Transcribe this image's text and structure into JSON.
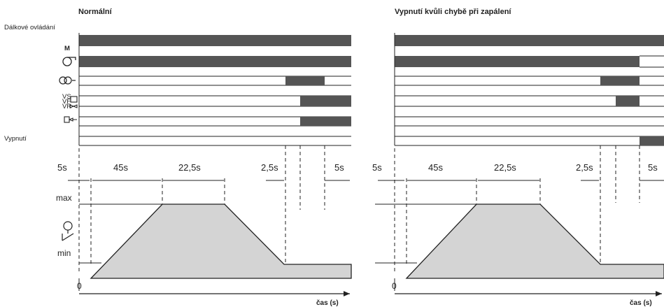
{
  "panels": [
    {
      "id": "left",
      "title": "Normální",
      "remote_label": "Dálkové ovládání",
      "motor_label": "M",
      "shutdown_label": "Vypnutí",
      "durations": [
        "5s",
        "45s",
        "22,5s",
        "2,5s",
        "5s"
      ],
      "y_max_label": "max",
      "y_min_label": "min",
      "origin_label": "0",
      "x_axis_label": "čas (s)"
    },
    {
      "id": "right",
      "title": "Vypnutí kvůli chybě při zapálení",
      "durations": [
        "5s",
        "45s",
        "22,5s",
        "2,5s",
        "5s"
      ],
      "origin_label": "0",
      "x_axis_label": "čas (s)"
    }
  ],
  "valve_labels": [
    "VS",
    "VF",
    "VR"
  ],
  "icons": [
    "motor-icon",
    "fan-icon",
    "ignition-transformer-icon",
    "gas-valves-icon",
    "flame-sensor-icon",
    "servomotor-icon"
  ],
  "colors": {
    "bar_fill": "#555555",
    "area_fill": "#d4d4d4",
    "line": "#222222"
  }
}
